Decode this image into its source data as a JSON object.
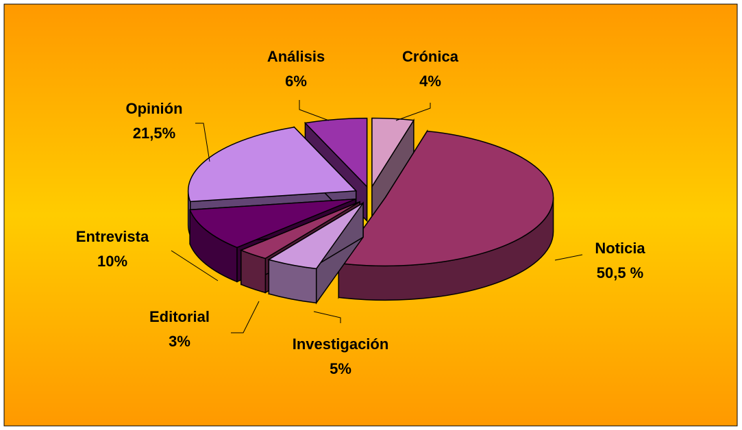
{
  "chart_data": {
    "type": "pie3d",
    "categories": [
      "Crónica",
      "Noticia",
      "Investigación",
      "Editorial",
      "Entrevista",
      "Opinión",
      "Análisis"
    ],
    "values": [
      4,
      50.5,
      5,
      3,
      10,
      21.5,
      6
    ],
    "value_labels": [
      "4%",
      "50,5 %",
      "5%",
      "3%",
      "10%",
      "21,5%",
      "6%"
    ],
    "colors": [
      "#d89cc4",
      "#993366",
      "#cc99dd",
      "#993366",
      "#660066",
      "#c48ae8",
      "#9933aa"
    ]
  }
}
